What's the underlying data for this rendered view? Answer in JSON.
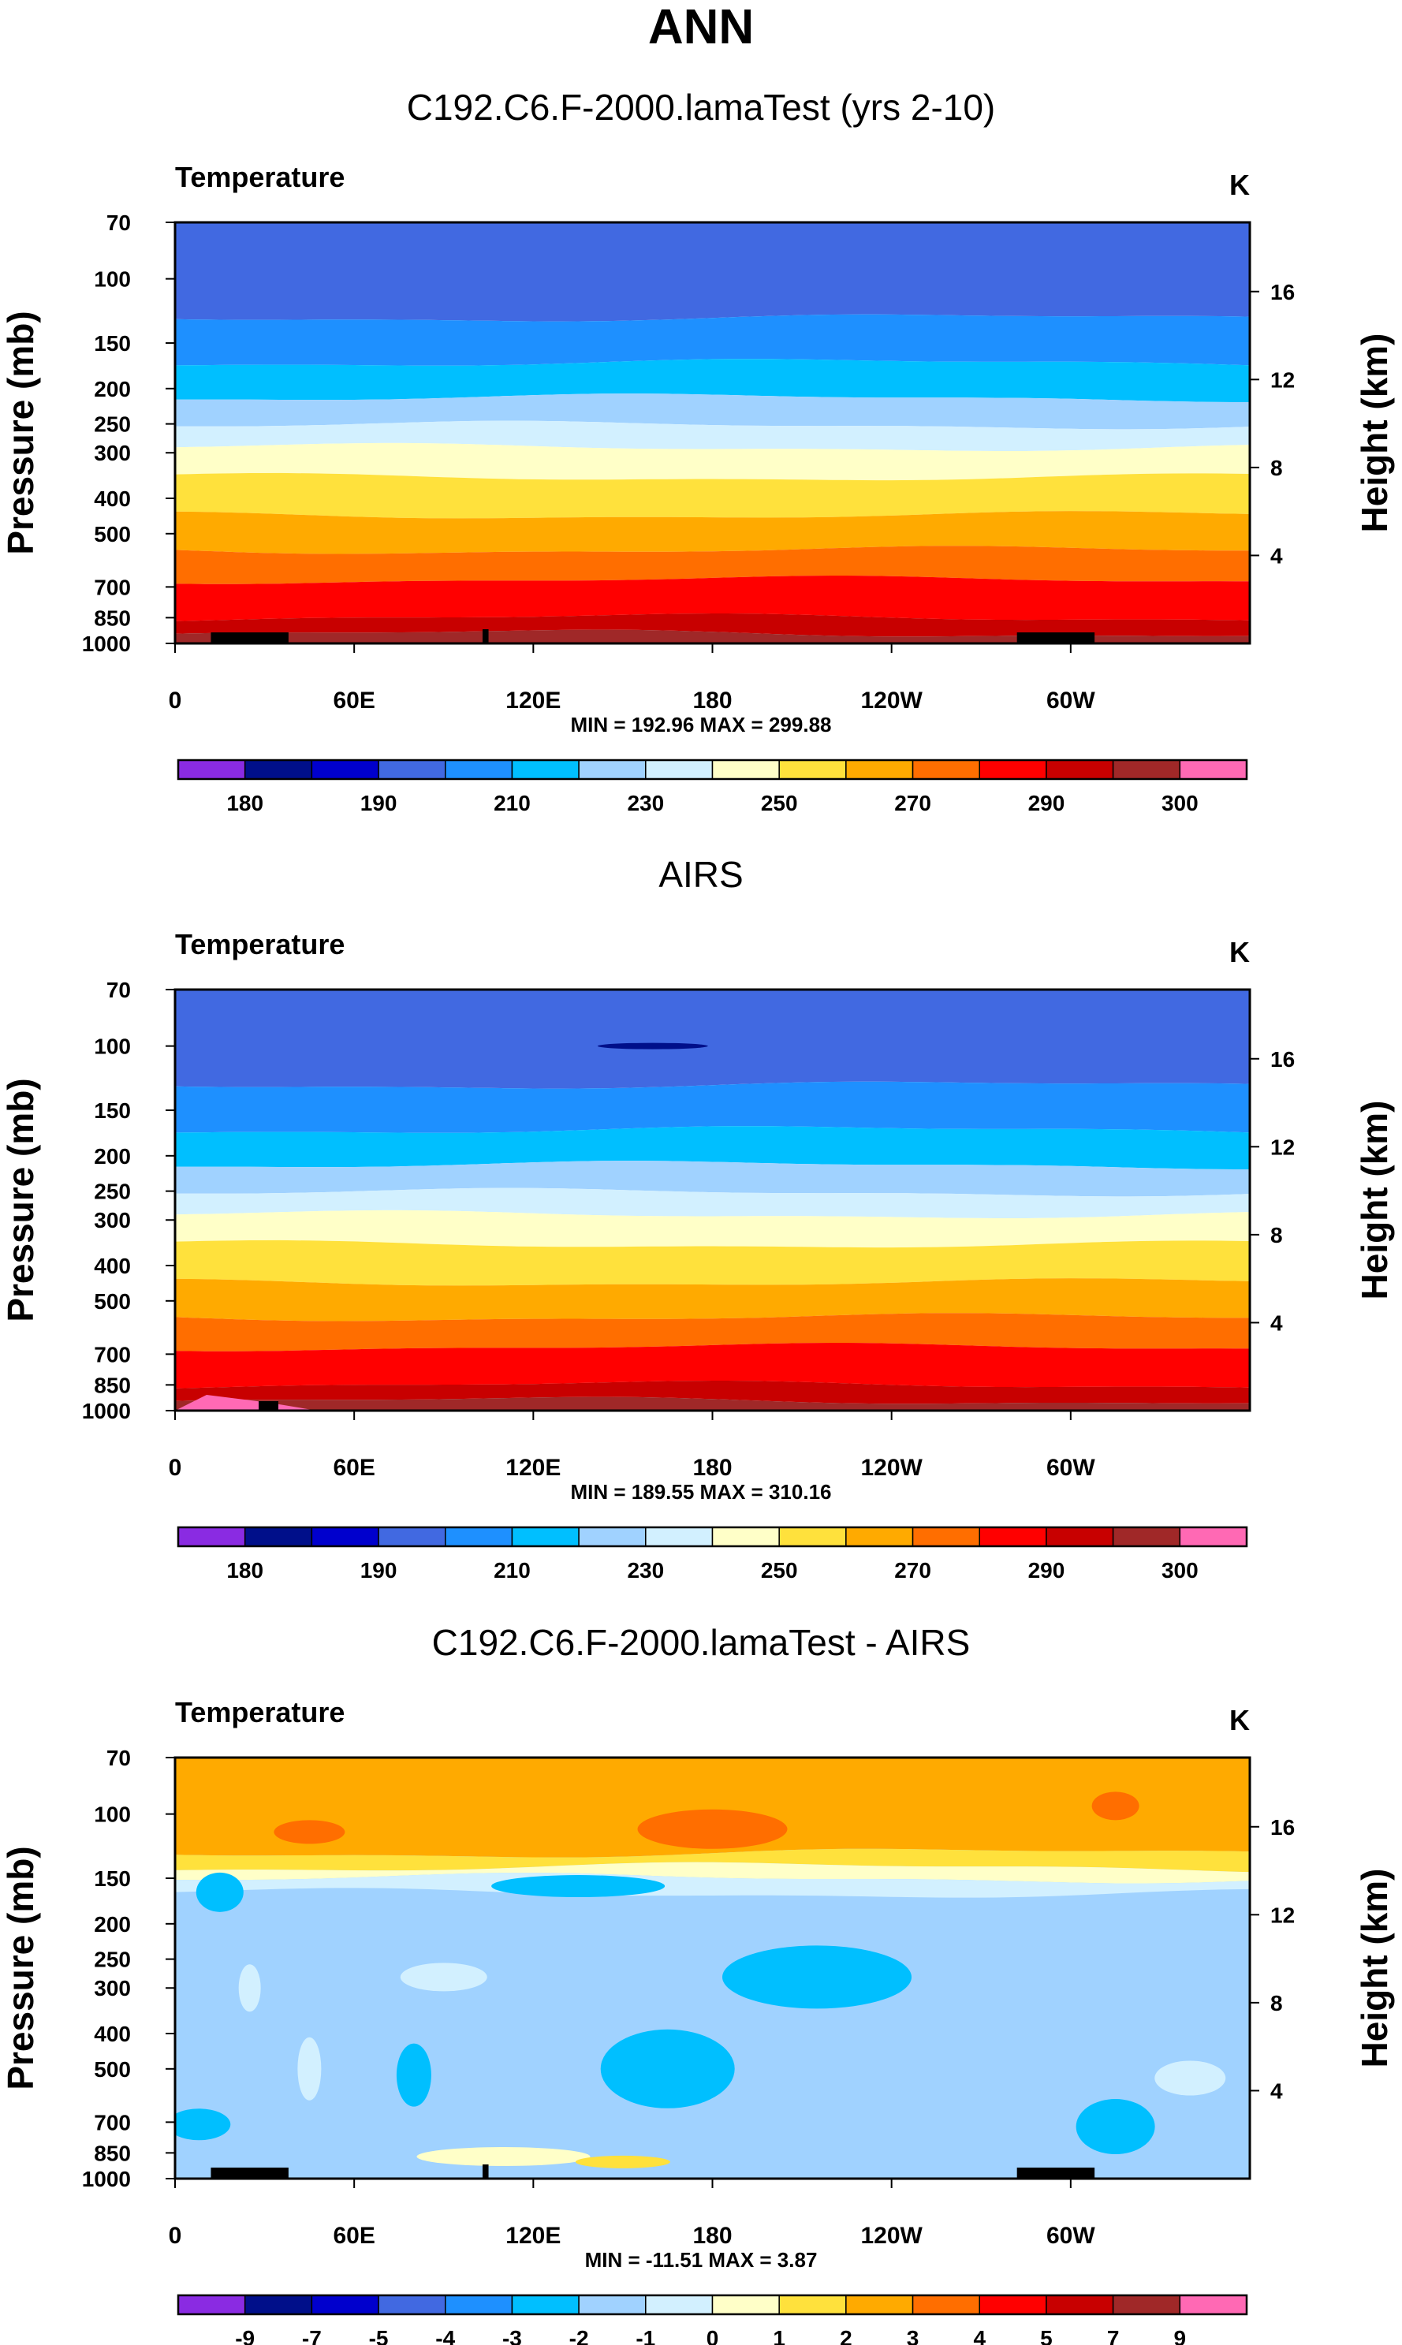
{
  "page_title": "ANN",
  "panels": [
    {
      "title": "C192.C6.F-2000.lamaTest (yrs 2-10)",
      "variable": "Temperature",
      "units": "K",
      "stats": "MIN = 192.96  MAX = 299.88",
      "kind": "abs"
    },
    {
      "title": "AIRS",
      "variable": "Temperature",
      "units": "K",
      "stats": "MIN = 189.55  MAX = 310.16",
      "kind": "abs"
    },
    {
      "title": "C192.C6.F-2000.lamaTest - AIRS",
      "variable": "Temperature",
      "units": "K",
      "stats": "MIN = -11.51  MAX =   3.87",
      "kind": "diff"
    }
  ],
  "chart_data": {
    "type": "heatmap",
    "x_ticks": [
      "0",
      "60E",
      "120E",
      "180",
      "120W",
      "60W"
    ],
    "x_tick_lon": [
      0,
      60,
      120,
      180,
      240,
      300
    ],
    "xlim": [
      0,
      360
    ],
    "y_label_left": "Pressure (mb)",
    "y_label_right": "Height (km)",
    "y_ticks_pressure": [
      70,
      100,
      150,
      200,
      250,
      300,
      400,
      500,
      700,
      850,
      1000
    ],
    "y_ticks_height": [
      16,
      12,
      8,
      4
    ],
    "ylim_pressure": [
      1000,
      70
    ],
    "abs_colorbar": {
      "colors": [
        "#8a2be2",
        "#000f8a",
        "#0000cd",
        "#4169e1",
        "#1e90ff",
        "#00bfff",
        "#a0d2ff",
        "#d2f0ff",
        "#ffffc8",
        "#ffe13c",
        "#ffaa00",
        "#ff6e00",
        "#ff0000",
        "#c80000",
        "#a02828",
        "#ff69b4"
      ],
      "labels": [
        "180",
        "190",
        "210",
        "230",
        "250",
        "270",
        "290",
        "300"
      ]
    },
    "diff_colorbar": {
      "colors": [
        "#8a2be2",
        "#000f8a",
        "#0000cd",
        "#4169e1",
        "#1e90ff",
        "#00bfff",
        "#a0d2ff",
        "#d2f0ff",
        "#ffffc8",
        "#ffe13c",
        "#ffaa00",
        "#ff6e00",
        "#ff0000",
        "#c80000",
        "#a02828",
        "#ff69b4"
      ],
      "labels": [
        "-9",
        "-7",
        "-5",
        "-4",
        "-3",
        "-2",
        "-1",
        "0",
        "1",
        "2",
        "3",
        "4",
        "5",
        "7",
        "9"
      ]
    },
    "abs_levels": [
      180,
      185,
      190,
      200,
      210,
      220,
      230,
      240,
      250,
      260,
      270,
      280,
      290,
      295,
      300
    ],
    "panel_min": [
      192.96,
      189.55,
      -11.51
    ],
    "panel_max": [
      299.88,
      310.16,
      3.87
    ]
  }
}
